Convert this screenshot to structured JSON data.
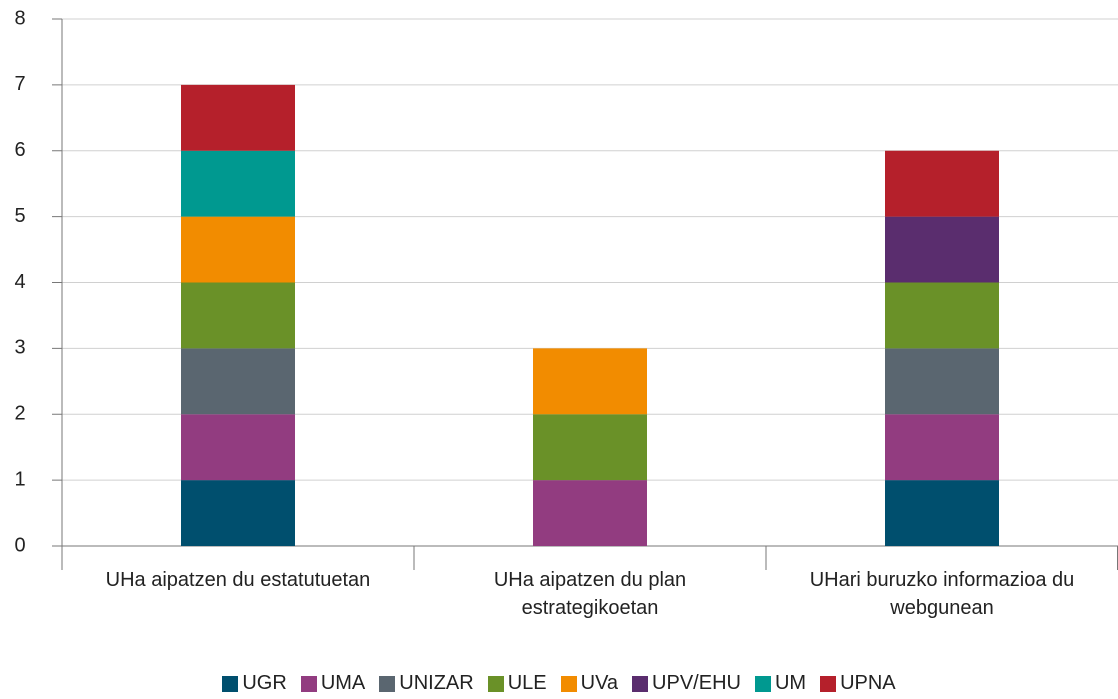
{
  "chart_data": {
    "type": "stacked_bar",
    "categories": [
      "UHa aipatzen du estatutuetan",
      "UHa aipatzen du plan estrategikoetan",
      "UHari buruzko informazioa du webgunean"
    ],
    "series": [
      {
        "name": "UGR",
        "color": "#004f6e",
        "values": [
          1,
          0,
          1
        ]
      },
      {
        "name": "UMA",
        "color": "#923c80",
        "values": [
          1,
          1,
          1
        ]
      },
      {
        "name": "UNIZAR",
        "color": "#5a6670",
        "values": [
          1,
          0,
          1
        ]
      },
      {
        "name": "ULE",
        "color": "#6a9128",
        "values": [
          1,
          1,
          1
        ]
      },
      {
        "name": "UVa",
        "color": "#f28c00",
        "values": [
          1,
          1,
          0
        ]
      },
      {
        "name": "UPV/EHU",
        "color": "#5a2d6e",
        "values": [
          0,
          0,
          1
        ]
      },
      {
        "name": "UM",
        "color": "#009990",
        "values": [
          1,
          0,
          0
        ]
      },
      {
        "name": "UPNA",
        "color": "#b5202b",
        "values": [
          1,
          0,
          1
        ]
      }
    ],
    "ylim": [
      0,
      8
    ],
    "yticks": [
      0,
      1,
      2,
      3,
      4,
      5,
      6,
      7,
      8
    ],
    "grid": true,
    "legend": "bottom"
  }
}
